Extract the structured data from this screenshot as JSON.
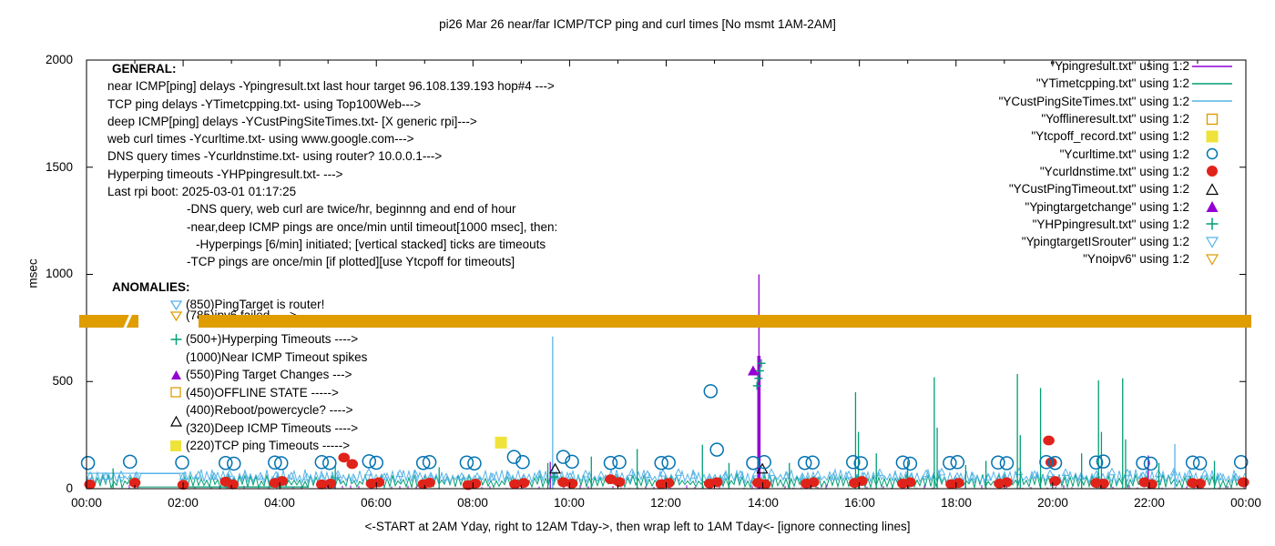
{
  "title": "pi26 Mar 26  near/far ICMP/TCP ping and curl times [No msmt 1AM-2AM]",
  "axes": {
    "ylabel": "msec",
    "y_ticks": [
      "0",
      "500",
      "1000",
      "1500",
      "2000"
    ],
    "x_ticks": [
      "00:00",
      "02:00",
      "04:00",
      "06:00",
      "08:00",
      "10:00",
      "12:00",
      "14:00",
      "16:00",
      "18:00",
      "20:00",
      "22:00",
      "00:00"
    ],
    "xlabel": "<-START at 2AM Yday, right to 12AM Tday->, then wrap left to 1AM Tday<- [ignore connecting lines]"
  },
  "general": {
    "heading": "GENERAL:",
    "lines": [
      "near ICMP[ping] delays -Ypingresult.txt last hour target 96.108.139.193 hop#4 --->",
      "TCP ping delays -YTimetcpping.txt- using Top100Web--->",
      "deep ICMP[ping] delays -YCustPingSiteTimes.txt- [X generic rpi]--->",
      "web curl times -Ycurltime.txt- using www.google.com--->",
      "DNS query times -Ycurldnstime.txt- using router? 10.0.0.1--->",
      "Hyperping timeouts -YHPpingresult.txt- --->",
      "Last rpi boot: 2025-03-01 01:17:25",
      "-DNS query, web curl are twice/hr, beginnng and end of hour",
      "-near,deep ICMP pings are once/min until timeout[1000 msec], then:",
      "-Hyperpings [6/min] initiated; [vertical stacked] ticks are timeouts",
      "-TCP pings are once/min [if plotted][use Ytcpoff for timeouts]"
    ]
  },
  "anomalies": {
    "heading": "ANOMALIES:",
    "items": [
      {
        "marker": "triangle-down-open",
        "color": "#56b4e9",
        "text": "(850)PingTarget is router!"
      },
      {
        "marker": "triangle-down-open",
        "color": "#df9d00",
        "text": "(785)ipv6 failed ---->"
      },
      {
        "marker": "plus",
        "color": "#009e73",
        "text": "(500+)Hyperping Timeouts ---->"
      },
      {
        "marker": "none",
        "color": "#000000",
        "text": "(1000)Near ICMP Timeout spikes"
      },
      {
        "marker": "triangle-up-fill",
        "color": "#9400d3",
        "text": "(550)Ping Target Changes --->"
      },
      {
        "marker": "square-open",
        "color": "#df9d00",
        "text": "(450)OFFLINE STATE ----->"
      },
      {
        "marker": "none",
        "color": "#000000",
        "text": "(400)Reboot/powercycle? ---->"
      },
      {
        "marker": "triangle-up-open",
        "color": "#000000",
        "text": "(320)Deep ICMP Timeouts ---->"
      },
      {
        "marker": "square-fill",
        "color": "#efe33b",
        "text": "(220)TCP ping Timeouts ----->"
      }
    ]
  },
  "legend": {
    "entries": [
      {
        "label": "\"Ypingresult.txt\" using 1:2",
        "marker": "line",
        "color": "#9400d3"
      },
      {
        "label": "\"YTimetcpping.txt\" using 1:2",
        "marker": "line",
        "color": "#009e73"
      },
      {
        "label": "\"YCustPingSiteTimes.txt\" using 1:2",
        "marker": "line",
        "color": "#56b4e9"
      },
      {
        "label": "\"Yofflineresult.txt\" using 1:2",
        "marker": "square-open",
        "color": "#df9d00"
      },
      {
        "label": "\"Ytcpoff_record.txt\" using 1:2",
        "marker": "square-fill",
        "color": "#efe33b"
      },
      {
        "label": "\"Ycurltime.txt\" using 1:2",
        "marker": "circle-open",
        "color": "#0072b2"
      },
      {
        "label": "\"Ycurldnstime.txt\" using 1:2",
        "marker": "circle-fill",
        "color": "#e0231a"
      },
      {
        "label": "\"YCustPingTimeout.txt\" using 1:2",
        "marker": "triangle-up-open",
        "color": "#000000"
      },
      {
        "label": "\"Ypingtargetchange\" using 1:2",
        "marker": "triangle-up-fill",
        "color": "#9400d3"
      },
      {
        "label": "\"YHPpingresult.txt\" using 1:2",
        "marker": "plus",
        "color": "#009e73"
      },
      {
        "label": "\"YpingtargetISrouter\" using 1:2",
        "marker": "triangle-down-open",
        "color": "#56b4e9"
      },
      {
        "label": "\"Ynoipv6\" using 1:2",
        "marker": "triangle-down-open",
        "color": "#df9d00"
      }
    ]
  },
  "chart_data": {
    "type": "line",
    "title": "pi26 Mar 26  near/far ICMP/TCP ping and curl times [No msmt 1AM-2AM]",
    "ylabel": "msec",
    "ylim": [
      0,
      2000
    ],
    "xlim_hours": [
      0,
      24
    ],
    "grid": false,
    "series_colors": {
      "Ypingresult.txt": "#9400d3",
      "YTimetcpping.txt": "#009e73",
      "YCustPingSiteTimes.txt": "#56b4e9"
    },
    "noipv6_band": {
      "value": 782,
      "msec_height": 62,
      "segments_hours": [
        [
          -0.16,
          1.08
        ],
        [
          2.32,
          24.12
        ]
      ],
      "color": "#df9d00"
    },
    "noise": {
      "cyan_range": [
        26,
        90
      ],
      "green_range": [
        4,
        68
      ],
      "suppress_hours": [
        1.1,
        1.95
      ]
    },
    "flat_segments": [
      {
        "series": "YCustPingSiteTimes.txt",
        "hours": [
          0,
          2.07
        ],
        "value": 72
      },
      {
        "series": "YTimetcpping.txt",
        "hours": [
          1.98,
          4.6
        ],
        "value": 8
      }
    ],
    "spikes": [
      {
        "series": "Ypingresult.txt",
        "hour": 13.92,
        "peak": 1000,
        "thick_to": 620
      },
      {
        "series": "Ypingresult.txt",
        "hour": 21.98,
        "peak": 155
      },
      {
        "series": "Ypingresult.txt",
        "hour": 9.6,
        "peak": 125
      },
      {
        "series": "YCustPingSiteTimes.txt",
        "hour": 9.65,
        "peak": 710
      },
      {
        "series": "YCustPingSiteTimes.txt",
        "hour": 22.53,
        "peak": 208
      },
      {
        "series": "YTimetcpping.txt",
        "hour": 15.92,
        "peak": 450
      },
      {
        "series": "YTimetcpping.txt",
        "hour": 15.98,
        "peak": 265
      },
      {
        "series": "YTimetcpping.txt",
        "hour": 17.55,
        "peak": 520
      },
      {
        "series": "YTimetcpping.txt",
        "hour": 17.61,
        "peak": 285
      },
      {
        "series": "YTimetcpping.txt",
        "hour": 19.27,
        "peak": 535
      },
      {
        "series": "YTimetcpping.txt",
        "hour": 19.33,
        "peak": 250
      },
      {
        "series": "YTimetcpping.txt",
        "hour": 19.75,
        "peak": 470
      },
      {
        "series": "YTimetcpping.txt",
        "hour": 20.95,
        "peak": 505
      },
      {
        "series": "YTimetcpping.txt",
        "hour": 21.01,
        "peak": 265
      },
      {
        "series": "YTimetcpping.txt",
        "hour": 21.45,
        "peak": 515
      },
      {
        "series": "YTimetcpping.txt",
        "hour": 21.51,
        "peak": 230
      },
      {
        "series": "YTimetcpping.txt",
        "hour": 11.4,
        "peak": 185
      },
      {
        "series": "YTimetcpping.txt",
        "hour": 12.75,
        "peak": 205
      },
      {
        "series": "YTimetcpping.txt",
        "hour": 16.35,
        "peak": 165
      },
      {
        "series": "YTimetcpping.txt",
        "hour": 18.62,
        "peak": 130
      },
      {
        "series": "YTimetcpping.txt",
        "hour": 20.6,
        "peak": 165
      },
      {
        "series": "YTimetcpping.txt",
        "hour": 23.35,
        "peak": 130
      },
      {
        "series": "YTimetcpping.txt",
        "hour": 0.55,
        "peak": 95
      },
      {
        "series": "YTimetcpping.txt",
        "hour": 5.15,
        "peak": 110
      },
      {
        "series": "YTimetcpping.txt",
        "hour": 7.3,
        "peak": 100
      },
      {
        "series": "YTimetcpping.txt",
        "hour": 9.55,
        "peak": 120
      },
      {
        "series": "YTimetcpping.txt",
        "hour": 10.45,
        "peak": 150
      },
      {
        "series": "YTimetcpping.txt",
        "hour": 13.3,
        "peak": 120
      },
      {
        "series": "YTimetcpping.txt",
        "hour": 14.55,
        "peak": 120
      },
      {
        "series": "YTimetcpping.txt",
        "hour": 17.0,
        "peak": 130
      },
      {
        "series": "YTimetcpping.txt",
        "hour": 18.2,
        "peak": 110
      },
      {
        "series": "YTimetcpping.txt",
        "hour": 22.2,
        "peak": 120
      }
    ],
    "curl_circles": [
      [
        0.03,
        120
      ],
      [
        0.9,
        126
      ],
      [
        1.98,
        122
      ],
      [
        2.88,
        120
      ],
      [
        3.05,
        117
      ],
      [
        3.9,
        122
      ],
      [
        4.03,
        119
      ],
      [
        4.87,
        124
      ],
      [
        5.03,
        120
      ],
      [
        5.85,
        128
      ],
      [
        6.0,
        121
      ],
      [
        6.97,
        120
      ],
      [
        7.1,
        124
      ],
      [
        7.87,
        122
      ],
      [
        8.03,
        118
      ],
      [
        8.85,
        148
      ],
      [
        9.03,
        124
      ],
      [
        9.87,
        148
      ],
      [
        10.05,
        126
      ],
      [
        10.85,
        120
      ],
      [
        11.03,
        124
      ],
      [
        11.9,
        120
      ],
      [
        12.05,
        122
      ],
      [
        12.92,
        455
      ],
      [
        13.05,
        182
      ],
      [
        13.8,
        120
      ],
      [
        14.03,
        124
      ],
      [
        14.87,
        120
      ],
      [
        15.03,
        122
      ],
      [
        15.87,
        124
      ],
      [
        16.03,
        119
      ],
      [
        16.9,
        122
      ],
      [
        17.05,
        117
      ],
      [
        17.87,
        120
      ],
      [
        18.03,
        124
      ],
      [
        18.87,
        122
      ],
      [
        19.05,
        119
      ],
      [
        19.87,
        124
      ],
      [
        20.05,
        120
      ],
      [
        20.9,
        122
      ],
      [
        21.05,
        127
      ],
      [
        21.87,
        120
      ],
      [
        22.03,
        117
      ],
      [
        22.9,
        122
      ],
      [
        23.05,
        119
      ],
      [
        23.9,
        124
      ]
    ],
    "dns_dots": [
      [
        0.07,
        20
      ],
      [
        1.0,
        28
      ],
      [
        2.0,
        18
      ],
      [
        2.88,
        33
      ],
      [
        3.03,
        20
      ],
      [
        3.9,
        27
      ],
      [
        4.05,
        36
      ],
      [
        4.87,
        20
      ],
      [
        5.05,
        24
      ],
      [
        5.33,
        145
      ],
      [
        5.5,
        115
      ],
      [
        5.9,
        24
      ],
      [
        6.05,
        30
      ],
      [
        6.97,
        21
      ],
      [
        7.1,
        28
      ],
      [
        7.9,
        17
      ],
      [
        8.05,
        24
      ],
      [
        8.87,
        21
      ],
      [
        9.05,
        27
      ],
      [
        9.87,
        30
      ],
      [
        10.05,
        24
      ],
      [
        10.85,
        44
      ],
      [
        11.03,
        31
      ],
      [
        11.9,
        21
      ],
      [
        12.05,
        27
      ],
      [
        12.9,
        24
      ],
      [
        13.05,
        30
      ],
      [
        13.9,
        28
      ],
      [
        14.05,
        21
      ],
      [
        14.9,
        24
      ],
      [
        15.05,
        30
      ],
      [
        15.9,
        27
      ],
      [
        16.05,
        36
      ],
      [
        16.9,
        24
      ],
      [
        17.05,
        30
      ],
      [
        17.9,
        21
      ],
      [
        18.05,
        27
      ],
      [
        18.9,
        24
      ],
      [
        19.05,
        30
      ],
      [
        19.92,
        225
      ],
      [
        19.97,
        123
      ],
      [
        20.05,
        36
      ],
      [
        20.9,
        27
      ],
      [
        21.05,
        24
      ],
      [
        21.9,
        30
      ],
      [
        22.05,
        21
      ],
      [
        22.9,
        27
      ],
      [
        23.05,
        24
      ],
      [
        23.95,
        30
      ]
    ],
    "tcpoff_squares": [
      [
        8.58,
        215
      ]
    ],
    "hyperping_plus": [
      [
        13.88,
        480
      ],
      [
        13.91,
        515
      ],
      [
        13.94,
        550
      ],
      [
        13.97,
        585
      ],
      [
        9.68,
        55
      ]
    ],
    "deep_timeout_triangles": [
      [
        9.7,
        92
      ],
      [
        13.99,
        92
      ]
    ],
    "target_change_triangles": [
      [
        13.8,
        550
      ]
    ]
  }
}
